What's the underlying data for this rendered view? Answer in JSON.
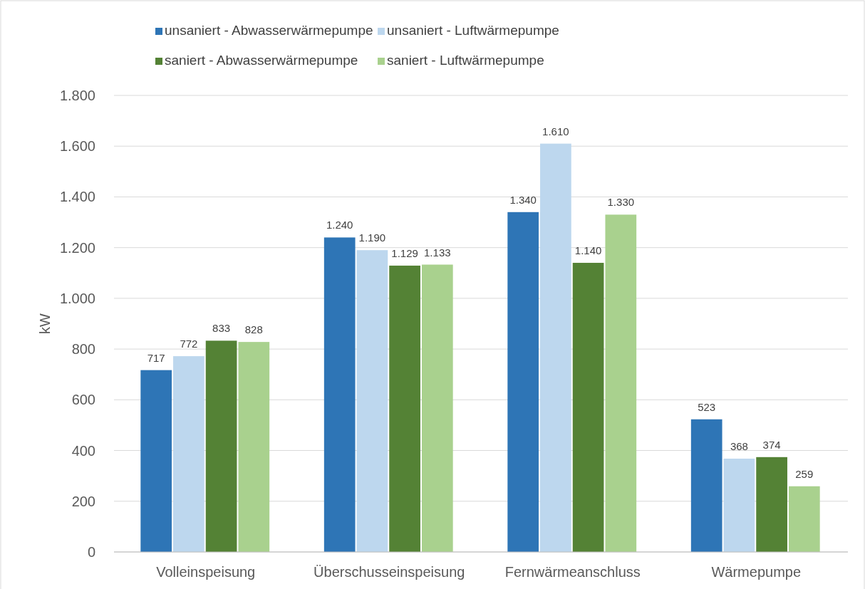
{
  "chart_data": {
    "type": "bar",
    "ylabel": "kW",
    "categories": [
      "Volleinspeisung",
      "Überschusseinspeisung",
      "Fernwärmeanschluss",
      "Wärmepumpe"
    ],
    "series": [
      {
        "name": "unsaniert - Abwasserwärmepumpe",
        "color": "#2e75b6",
        "values": [
          717,
          1240,
          1340,
          523
        ],
        "value_labels": [
          "717",
          "1.240",
          "1.340",
          "523"
        ]
      },
      {
        "name": "unsaniert - Luftwärmepumpe",
        "color": "#bdd7ee",
        "values": [
          772,
          1190,
          1610,
          368
        ],
        "value_labels": [
          "772",
          "1.190",
          "1.610",
          "368"
        ]
      },
      {
        "name": "saniert - Abwasserwärmepumpe",
        "color": "#548235",
        "values": [
          833,
          1129,
          1140,
          374
        ],
        "value_labels": [
          "833",
          "1.129",
          "1.140",
          "374"
        ]
      },
      {
        "name": "saniert - Luftwärmepumpe",
        "color": "#a9d18e",
        "values": [
          828,
          1133,
          1330,
          259
        ],
        "value_labels": [
          "828",
          "1.133",
          "1.330",
          "259"
        ]
      }
    ],
    "ylim": [
      0,
      1800
    ],
    "yticks": [
      0,
      {
        "value": 200,
        "label": "200"
      },
      {
        "value": 400,
        "label": "400"
      },
      {
        "value": 600,
        "label": "600"
      },
      {
        "value": 800,
        "label": "800"
      },
      {
        "value": 1000,
        "label": "1.000"
      },
      {
        "value": 1200,
        "label": "1.200"
      },
      {
        "value": 1400,
        "label": "1.400"
      },
      {
        "value": 1600,
        "label": "1.600"
      },
      {
        "value": 1800,
        "label": "1.800"
      }
    ],
    "grid": "y",
    "legend": "top"
  }
}
